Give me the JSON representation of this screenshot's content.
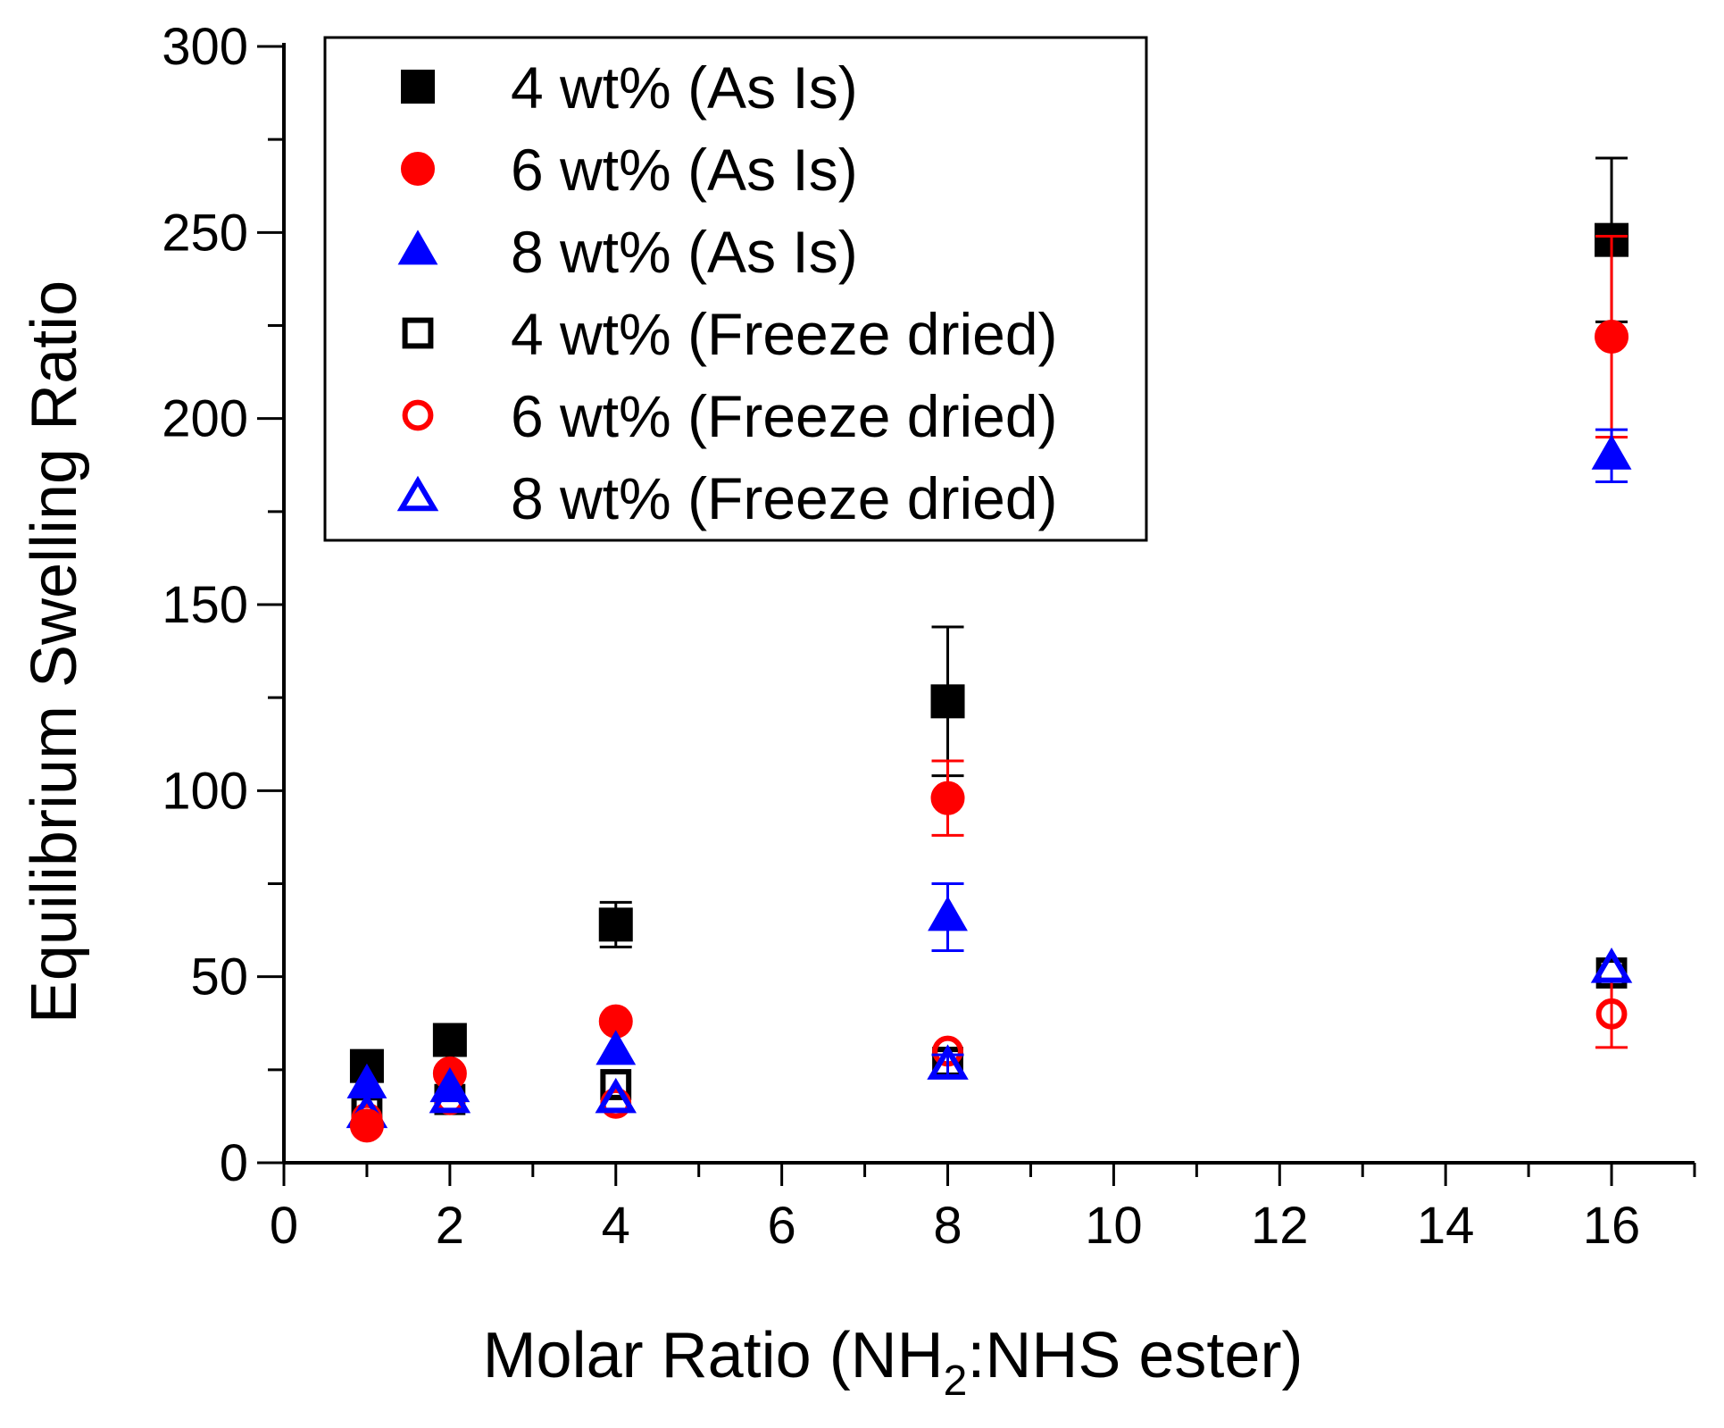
{
  "chart_data": {
    "type": "scatter",
    "xlabel": {
      "main": "Molar Ratio (NH",
      "sub": "2",
      "rest": ":NHS ester)"
    },
    "ylabel": "Equilibrium Swelling Ratio",
    "xlim": [
      0,
      17
    ],
    "ylim": [
      0,
      300
    ],
    "x_ticks": [
      0,
      2,
      4,
      6,
      8,
      10,
      12,
      14,
      16
    ],
    "y_ticks": [
      0,
      50,
      100,
      150,
      200,
      250,
      300
    ],
    "legend_position": "top-left",
    "series": [
      {
        "name": "4 wt% (As Is)",
        "color": "#000000",
        "marker": "square",
        "filled": true,
        "points": [
          {
            "x": 1,
            "y": 26,
            "err": 0
          },
          {
            "x": 2,
            "y": 33,
            "err": 0
          },
          {
            "x": 4,
            "y": 64,
            "err": 6
          },
          {
            "x": 8,
            "y": 124,
            "err": 20
          },
          {
            "x": 16,
            "y": 248,
            "err": 22
          }
        ]
      },
      {
        "name": "6 wt% (As Is)",
        "color": "#ff0000",
        "marker": "circle",
        "filled": true,
        "points": [
          {
            "x": 1,
            "y": 10,
            "err": 0
          },
          {
            "x": 2,
            "y": 24,
            "err": 0
          },
          {
            "x": 4,
            "y": 38,
            "err": 0
          },
          {
            "x": 8,
            "y": 98,
            "err": 10
          },
          {
            "x": 16,
            "y": 222,
            "err": 27
          }
        ]
      },
      {
        "name": "8 wt% (As Is)",
        "color": "#0000ff",
        "marker": "triangle",
        "filled": true,
        "points": [
          {
            "x": 1,
            "y": 21,
            "err": 0
          },
          {
            "x": 2,
            "y": 20,
            "err": 0
          },
          {
            "x": 4,
            "y": 30,
            "err": 0
          },
          {
            "x": 8,
            "y": 66,
            "err": 9
          },
          {
            "x": 16,
            "y": 190,
            "err": 7
          }
        ]
      },
      {
        "name": "4 wt% (Freeze dried)",
        "color": "#000000",
        "marker": "square",
        "filled": false,
        "points": [
          {
            "x": 1,
            "y": 14,
            "err": 0
          },
          {
            "x": 2,
            "y": 17,
            "err": 0
          },
          {
            "x": 4,
            "y": 21,
            "err": 0
          },
          {
            "x": 8,
            "y": 27,
            "err": 0
          },
          {
            "x": 16,
            "y": 51,
            "err": 0
          }
        ]
      },
      {
        "name": "6 wt% (Freeze dried)",
        "color": "#ff0000",
        "marker": "circle",
        "filled": false,
        "points": [
          {
            "x": 1,
            "y": 12,
            "err": 0
          },
          {
            "x": 2,
            "y": 17,
            "err": 0
          },
          {
            "x": 4,
            "y": 16,
            "err": 0
          },
          {
            "x": 8,
            "y": 30,
            "err": 0
          },
          {
            "x": 16,
            "y": 40,
            "err": 9
          }
        ]
      },
      {
        "name": "8 wt% (Freeze dried)",
        "color": "#0000ff",
        "marker": "triangle",
        "filled": false,
        "points": [
          {
            "x": 1,
            "y": 13,
            "err": 0
          },
          {
            "x": 2,
            "y": 17,
            "err": 0
          },
          {
            "x": 4,
            "y": 17,
            "err": 0
          },
          {
            "x": 8,
            "y": 26,
            "err": 3
          },
          {
            "x": 16,
            "y": 52,
            "err": 0
          }
        ]
      }
    ]
  }
}
